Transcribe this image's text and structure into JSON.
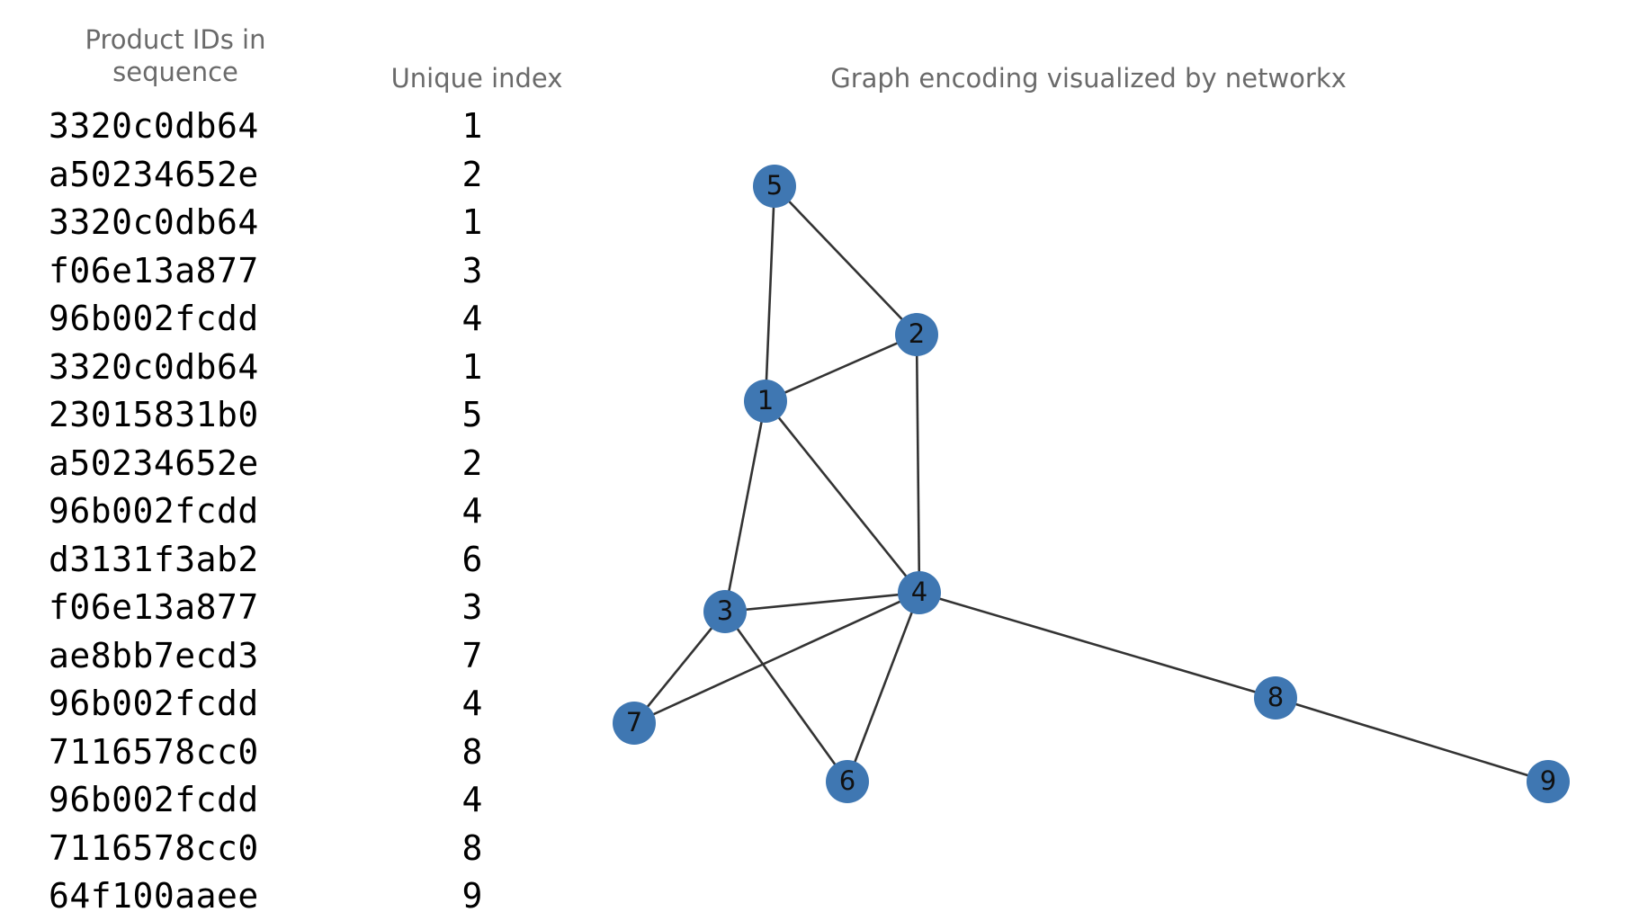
{
  "headers": {
    "product_ids": "Product IDs in sequence",
    "unique_index": "Unique index",
    "graph": "Graph encoding visualized by networkx"
  },
  "sequence": [
    {
      "id": "3320c0db64",
      "index": "1"
    },
    {
      "id": "a50234652e",
      "index": "2"
    },
    {
      "id": "3320c0db64",
      "index": "1"
    },
    {
      "id": "f06e13a877",
      "index": "3"
    },
    {
      "id": "96b002fcdd",
      "index": "4"
    },
    {
      "id": "3320c0db64",
      "index": "1"
    },
    {
      "id": "23015831b0",
      "index": "5"
    },
    {
      "id": "a50234652e",
      "index": "2"
    },
    {
      "id": "96b002fcdd",
      "index": "4"
    },
    {
      "id": "d3131f3ab2",
      "index": "6"
    },
    {
      "id": "f06e13a877",
      "index": "3"
    },
    {
      "id": "ae8bb7ecd3",
      "index": "7"
    },
    {
      "id": "96b002fcdd",
      "index": "4"
    },
    {
      "id": "7116578cc0",
      "index": "8"
    },
    {
      "id": "96b002fcdd",
      "index": "4"
    },
    {
      "id": "7116578cc0",
      "index": "8"
    },
    {
      "id": "64f100aaee",
      "index": "9"
    }
  ],
  "graph": {
    "node_color": "#3f77b2",
    "edge_color": "#333333",
    "nodes": [
      "1",
      "2",
      "3",
      "4",
      "5",
      "6",
      "7",
      "8",
      "9"
    ],
    "edges": [
      [
        "1",
        "2"
      ],
      [
        "1",
        "5"
      ],
      [
        "2",
        "5"
      ],
      [
        "1",
        "3"
      ],
      [
        "1",
        "4"
      ],
      [
        "2",
        "4"
      ],
      [
        "3",
        "4"
      ],
      [
        "3",
        "7"
      ],
      [
        "3",
        "6"
      ],
      [
        "4",
        "7"
      ],
      [
        "4",
        "6"
      ],
      [
        "4",
        "8"
      ],
      [
        "8",
        "9"
      ]
    ]
  }
}
